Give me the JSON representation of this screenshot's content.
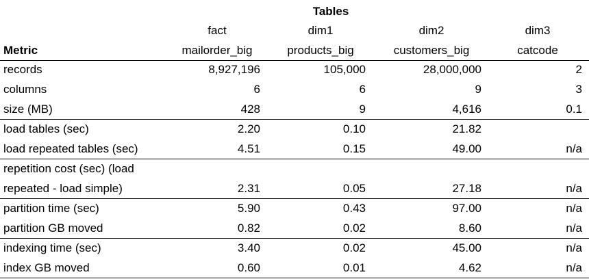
{
  "header": {
    "title": "Tables",
    "groups": [
      "fact",
      "dim1",
      "dim2",
      "dim3"
    ],
    "names": [
      "mailorder_big",
      "products_big",
      "customers_big",
      "catcode"
    ],
    "metric": "Metric"
  },
  "table": {
    "rows": [
      {
        "label": [
          "records"
        ],
        "values": [
          "8,927,196",
          "105,000",
          "28,000,000",
          "2"
        ]
      },
      {
        "label": [
          "columns"
        ],
        "values": [
          "6",
          "6",
          "9",
          "3"
        ]
      },
      {
        "label": [
          "size (MB)"
        ],
        "values": [
          "428",
          "9",
          "4,616",
          "0.1"
        ]
      },
      {
        "label": [
          "load tables (sec)"
        ],
        "values": [
          "2.20",
          "0.10",
          "21.82",
          null
        ]
      },
      {
        "label": [
          "load repeated tables (sec)"
        ],
        "values": [
          "4.51",
          "0.15",
          "49.00",
          "n/a"
        ]
      },
      {
        "label": [
          "repetition cost (sec) (load",
          "repeated - load simple)"
        ],
        "values": [
          "2.31",
          "0.05",
          "27.18",
          "n/a"
        ]
      },
      {
        "label": [
          "partition time (sec)"
        ],
        "values": [
          "5.90",
          "0.43",
          "97.00",
          "n/a"
        ]
      },
      {
        "label": [
          "partition GB moved"
        ],
        "values": [
          "0.82",
          "0.02",
          "8.60",
          "n/a"
        ]
      },
      {
        "label": [
          "indexing time (sec)"
        ],
        "values": [
          "3.40",
          "0.02",
          "45.00",
          "n/a"
        ]
      },
      {
        "label": [
          "index GB moved"
        ],
        "values": [
          "0.60",
          "0.01",
          "4.62",
          "n/a"
        ]
      }
    ]
  }
}
